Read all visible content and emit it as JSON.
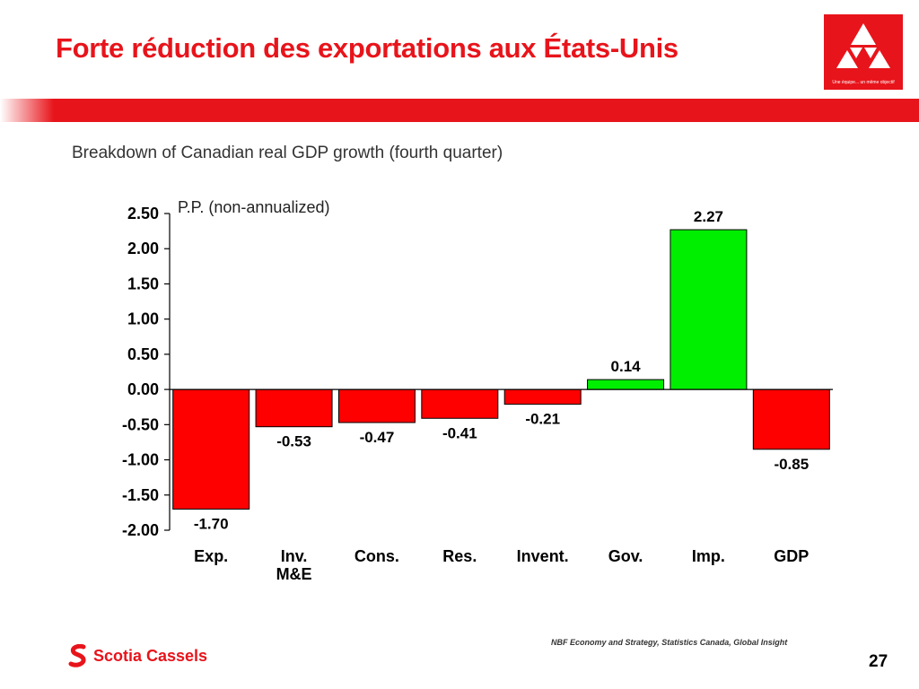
{
  "slide": {
    "title": "Forte réduction des exportations aux États-Unis",
    "logo_tagline": "Une équipe... un même objectif",
    "source": "NBF Economy and Strategy, Statistics Canada, Global Insight",
    "brand_name": "Scotia Cassels",
    "page_number": "27"
  },
  "colors": {
    "accent_red": "#e8141b",
    "negative_bar": "#ff0000",
    "positive_bar": "#00ee00"
  },
  "chart_data": {
    "type": "bar",
    "title": "Breakdown of Canadian real GDP growth (fourth quarter)",
    "unit_label": "P.P. (non-annualized)",
    "categories": [
      "Exp.",
      "Inv.\nM&E",
      "Cons.",
      "Res.",
      "Invent.",
      "Gov.",
      "Imp.",
      "GDP"
    ],
    "values": [
      -1.7,
      -0.53,
      -0.47,
      -0.41,
      -0.21,
      0.14,
      2.27,
      -0.85
    ],
    "value_labels": [
      "-1.70",
      "-0.53",
      "-0.47",
      "-0.41",
      "-0.21",
      "0.14",
      "2.27",
      "-0.85"
    ],
    "yticks": [
      "2.50",
      "2.00",
      "1.50",
      "1.00",
      "0.50",
      "0.00",
      "-0.50",
      "-1.00",
      "-1.50",
      "-2.00"
    ],
    "ylim": [
      -2.0,
      2.5
    ],
    "grid": false,
    "legend": "none"
  }
}
